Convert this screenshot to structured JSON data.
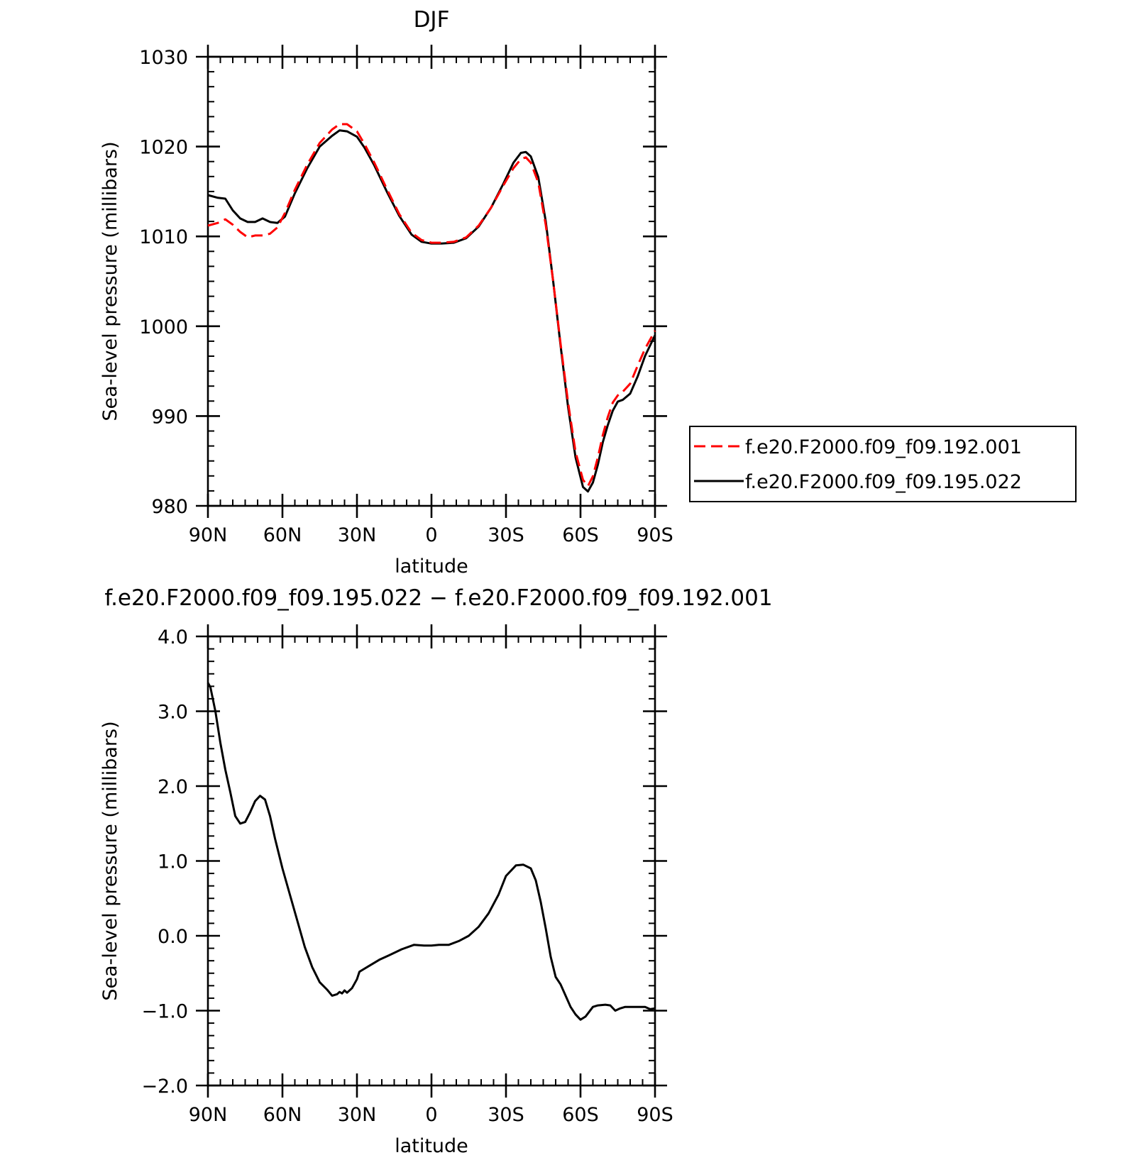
{
  "chart_data": [
    {
      "type": "line",
      "title": "DJF",
      "xlabel": "latitude",
      "ylabel": "Sea-level pressure (millibars)",
      "xlim": [
        90,
        -90
      ],
      "ylim": [
        980,
        1030
      ],
      "x_tick_values": [
        90,
        60,
        30,
        0,
        -30,
        -60,
        -90
      ],
      "x_tick_labels": [
        "90N",
        "60N",
        "30N",
        "0",
        "30S",
        "60S",
        "90S"
      ],
      "y_tick_values": [
        980,
        990,
        1000,
        1010,
        1020,
        1030
      ],
      "y_tick_labels": [
        "980",
        "990",
        "1000",
        "1010",
        "1020",
        "1030"
      ],
      "legend_position": "right",
      "series": [
        {
          "name": "f.e20.F2000.f09_f09.192.001",
          "color": "#ff0000",
          "dash": "dashed",
          "x": [
            90,
            86,
            83,
            80,
            77,
            74,
            71,
            68,
            65,
            62,
            59,
            55,
            50,
            45,
            40,
            37,
            34,
            30,
            27,
            23,
            18,
            13,
            8,
            4,
            0,
            -4,
            -9,
            -14,
            -19,
            -24,
            -29,
            -33,
            -36,
            -38,
            -40,
            -43,
            -46,
            -49,
            -52,
            -55,
            -58,
            -61,
            -63,
            -65,
            -67,
            -69,
            -71,
            -73,
            -75,
            -77,
            -80,
            -83,
            -86,
            -90
          ],
          "values": [
            1011.2,
            1011.5,
            1011.9,
            1011.3,
            1010.5,
            1009.9,
            1010.1,
            1010.1,
            1010.3,
            1011.0,
            1012.6,
            1015.2,
            1018.0,
            1020.4,
            1021.9,
            1022.5,
            1022.5,
            1021.7,
            1020.3,
            1018.2,
            1015.3,
            1012.5,
            1010.4,
            1009.6,
            1009.3,
            1009.3,
            1009.4,
            1009.9,
            1011.2,
            1013.2,
            1015.7,
            1017.6,
            1018.6,
            1018.8,
            1018.2,
            1016.0,
            1011.3,
            1005.0,
            998.0,
            991.5,
            986.0,
            982.9,
            982.2,
            983.3,
            985.4,
            987.9,
            989.9,
            991.5,
            992.3,
            992.7,
            993.6,
            995.6,
            997.5,
            999.5
          ]
        },
        {
          "name": "f.e20.F2000.f09_f09.195.022",
          "color": "#000000",
          "dash": "solid",
          "x": [
            90,
            86,
            83,
            80,
            77,
            74,
            71,
            68,
            65,
            62,
            59,
            55,
            50,
            45,
            40,
            37,
            34,
            30,
            27,
            23,
            18,
            13,
            8,
            4,
            0,
            -4,
            -9,
            -14,
            -19,
            -24,
            -29,
            -33,
            -36,
            -38,
            -40,
            -43,
            -46,
            -49,
            -52,
            -55,
            -58,
            -61,
            -63,
            -65,
            -67,
            -69,
            -71,
            -73,
            -75,
            -77,
            -80,
            -83,
            -86,
            -90
          ],
          "values": [
            1014.6,
            1014.3,
            1014.2,
            1012.9,
            1012.0,
            1011.6,
            1011.6,
            1012.0,
            1011.6,
            1011.5,
            1012.2,
            1014.8,
            1017.6,
            1020.0,
            1021.2,
            1021.8,
            1021.7,
            1021.1,
            1019.9,
            1017.9,
            1015.0,
            1012.3,
            1010.2,
            1009.4,
            1009.2,
            1009.2,
            1009.3,
            1009.8,
            1011.1,
            1013.2,
            1015.9,
            1018.2,
            1019.3,
            1019.4,
            1018.9,
            1016.6,
            1011.7,
            1005.0,
            997.8,
            991.0,
            985.4,
            982.1,
            981.6,
            982.6,
            984.6,
            987.1,
            989.0,
            990.6,
            991.6,
            991.8,
            992.5,
            994.4,
            996.7,
            999.0
          ]
        }
      ]
    },
    {
      "type": "line",
      "title": "f.e20.F2000.f09_f09.195.022 - f.e20.F2000.f09_f09.192.001",
      "xlabel": "latitude",
      "ylabel": "Sea-level pressure (millibars)",
      "xlim": [
        90,
        -90
      ],
      "ylim": [
        -2.0,
        4.0
      ],
      "x_tick_values": [
        90,
        60,
        30,
        0,
        -30,
        -60,
        -90
      ],
      "x_tick_labels": [
        "90N",
        "60N",
        "30N",
        "0",
        "30S",
        "60S",
        "90S"
      ],
      "y_tick_values": [
        -2.0,
        -1.0,
        0.0,
        1.0,
        2.0,
        3.0,
        4.0
      ],
      "y_tick_labels": [
        "-2.0",
        "-1.0",
        "0.0",
        "1.0",
        "2.0",
        "3.0",
        "4.0"
      ],
      "series": [
        {
          "color": "#000000",
          "dash": "solid",
          "x": [
            90,
            89,
            87,
            85,
            83,
            81,
            79,
            77,
            75,
            73,
            71,
            69,
            67,
            65,
            63,
            60,
            57,
            54,
            51,
            48,
            45,
            42,
            40,
            38,
            37,
            36,
            35,
            34,
            32,
            30,
            29,
            28,
            25,
            21,
            17,
            12,
            7,
            3,
            0,
            -3,
            -7,
            -11,
            -15,
            -19,
            -23,
            -27,
            -30,
            -34,
            -37,
            -40,
            -42,
            -44,
            -46,
            -48,
            -50,
            -52,
            -54,
            -56,
            -58,
            -60,
            -62,
            -65,
            -67,
            -70,
            -72,
            -74,
            -76,
            -78,
            -80,
            -82,
            -84,
            -86,
            -88,
            -90
          ],
          "values": [
            3.38,
            3.32,
            3.0,
            2.58,
            2.22,
            1.92,
            1.6,
            1.5,
            1.52,
            1.65,
            1.8,
            1.87,
            1.82,
            1.6,
            1.3,
            0.9,
            0.55,
            0.2,
            -0.15,
            -0.42,
            -0.62,
            -0.72,
            -0.8,
            -0.78,
            -0.75,
            -0.77,
            -0.73,
            -0.76,
            -0.7,
            -0.58,
            -0.48,
            -0.46,
            -0.4,
            -0.32,
            -0.26,
            -0.18,
            -0.12,
            -0.13,
            -0.13,
            -0.12,
            -0.12,
            -0.07,
            0.0,
            0.12,
            0.3,
            0.55,
            0.8,
            0.94,
            0.95,
            0.9,
            0.74,
            0.45,
            0.1,
            -0.28,
            -0.55,
            -0.65,
            -0.8,
            -0.95,
            -1.05,
            -1.12,
            -1.08,
            -0.95,
            -0.93,
            -0.92,
            -0.93,
            -1.0,
            -0.97,
            -0.95,
            -0.95,
            -0.95,
            -0.95,
            -0.95,
            -0.98,
            -0.97
          ]
        }
      ]
    }
  ]
}
